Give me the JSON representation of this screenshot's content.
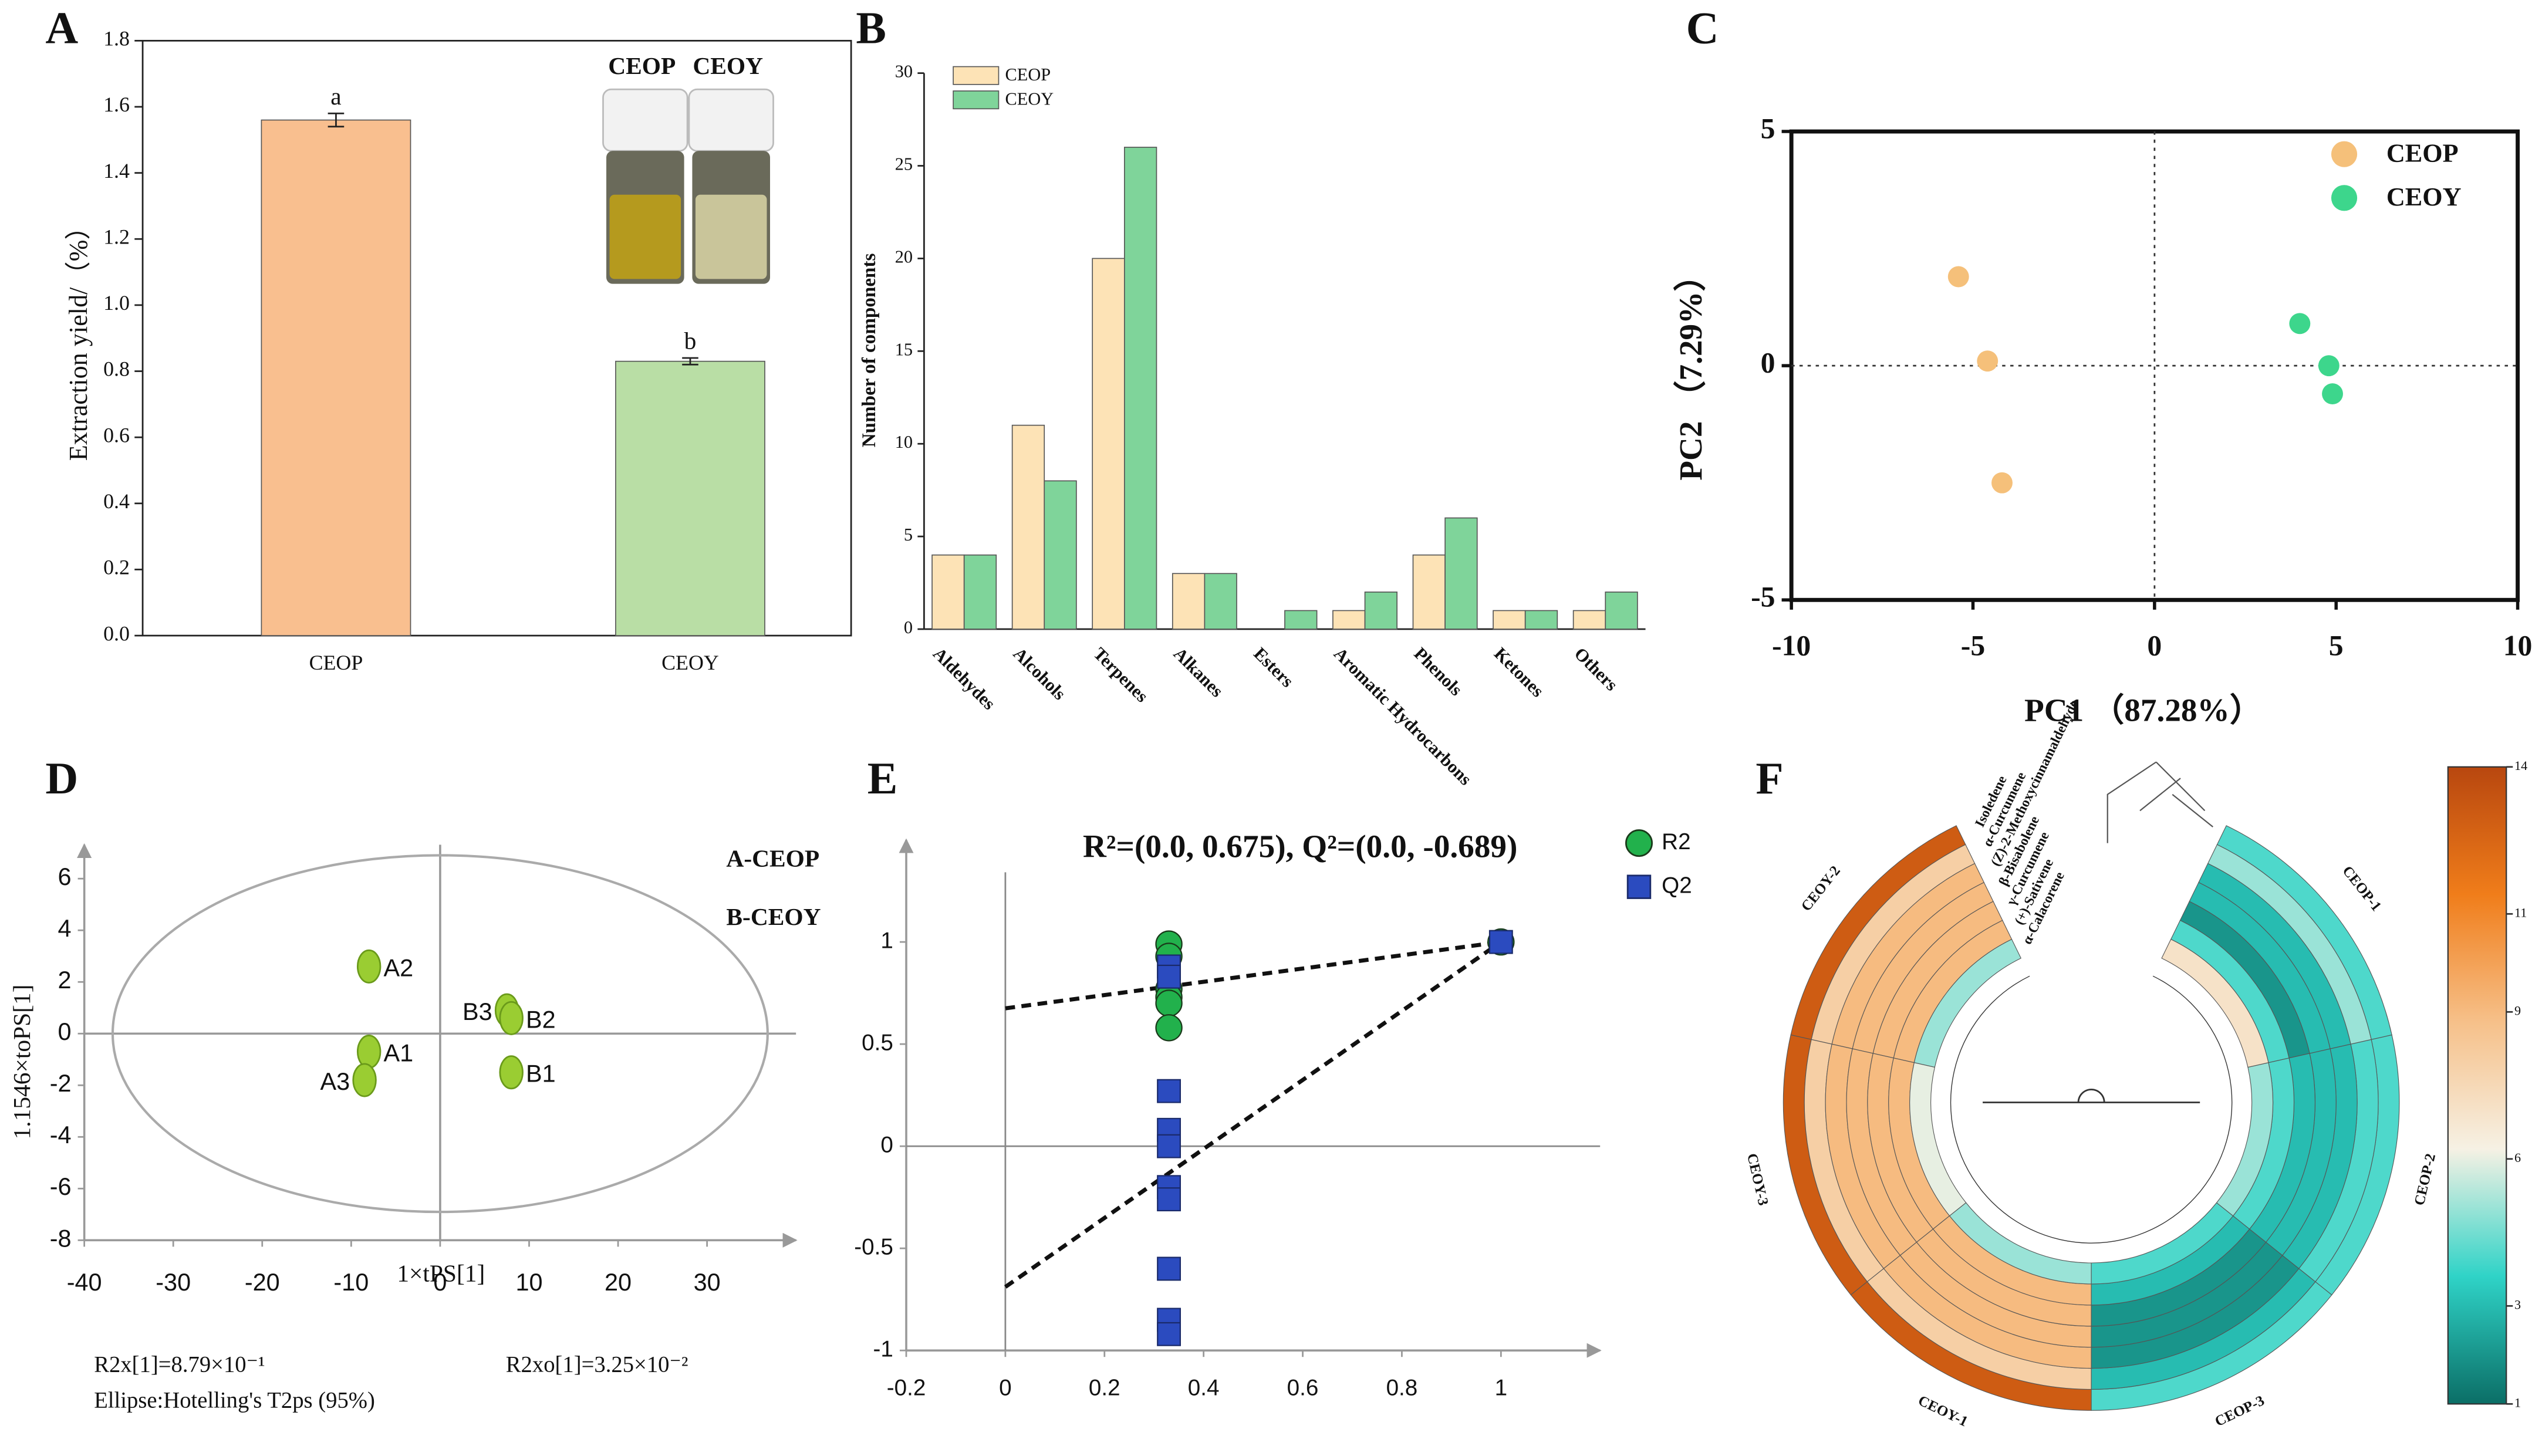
{
  "chart_data": [
    {
      "type": "bar",
      "panel": "A",
      "ylabel": "Extraction yield/（%）",
      "categories": [
        "CEOP",
        "CEOY"
      ],
      "values": [
        1.56,
        0.83
      ],
      "errors": [
        0.02,
        0.01
      ],
      "annotations": [
        "a",
        "b"
      ],
      "colors": [
        "#f9bf8f",
        "#b9dea5"
      ],
      "inset_labels": [
        "CEOP",
        "CEOY"
      ],
      "ylim": [
        0,
        1.8
      ],
      "yticks": [
        {
          "value": 0,
          "label": "0.0"
        },
        0.2,
        0.4,
        0.6,
        0.8,
        {
          "value": 1,
          "label": "1.0"
        },
        1.2,
        1.4,
        1.6,
        1.8
      ]
    },
    {
      "type": "grouped_bar",
      "panel": "B",
      "ylabel": "Number of components",
      "categories": [
        "Aldehydes",
        "Alcohols",
        "Terpenes",
        "Alkanes",
        "Esters",
        "Aromatic Hydrocarbons",
        "Phenols",
        "Ketones",
        "Others"
      ],
      "series": [
        {
          "name": "CEOP",
          "color": "#fde3b6",
          "values": [
            4,
            11,
            20,
            3,
            0,
            1,
            4,
            1,
            1
          ]
        },
        {
          "name": "CEOY",
          "color": "#7fd49a",
          "values": [
            4,
            8,
            26,
            3,
            1,
            2,
            6,
            1,
            2
          ]
        }
      ],
      "ylim": [
        0,
        30
      ],
      "yticks": [
        0,
        5,
        10,
        15,
        20,
        25,
        30
      ],
      "legend": "upper left"
    },
    {
      "type": "scatter",
      "panel": "C",
      "xlabel": "PC1 （87.28%）",
      "ylabel": "PC2 （7.29%）",
      "xlim": [
        -10,
        10
      ],
      "ylim": [
        -5,
        5
      ],
      "xticks": [
        -10,
        -5,
        0,
        5,
        10
      ],
      "yticks": [
        -5,
        0,
        5
      ],
      "legend": "upper right",
      "series": [
        {
          "name": "CEOP",
          "color": "#f5c07a",
          "x": [
            -5.4,
            -4.6,
            -4.2
          ],
          "values": [
            1.9,
            0.1,
            -2.5
          ]
        },
        {
          "name": "CEOY",
          "color": "#3dd68c",
          "x": [
            4,
            4.8,
            4.9
          ],
          "values": [
            0.9,
            0,
            -0.6
          ]
        }
      ]
    },
    {
      "type": "labeled_scatter",
      "panel": "D",
      "xlabel": "1×tPS[1]",
      "ylabel": "1.1546×toPS[1]",
      "xlim": [
        -40,
        40
      ],
      "ylim": [
        -8,
        7
      ],
      "xticks": [
        -40,
        -30,
        -20,
        -10,
        0,
        10,
        20,
        30
      ],
      "yticks": [
        -8,
        -6,
        -4,
        -2,
        0,
        2,
        4,
        6
      ],
      "color": "#9acd32",
      "labels": [
        "A2",
        "A1",
        "A3",
        "B3",
        "B2",
        "B1"
      ],
      "x": [
        -8,
        -8,
        -8.5,
        7.5,
        8,
        8
      ],
      "values": [
        2.6,
        -0.7,
        -1.8,
        0.9,
        0.6,
        -1.5
      ],
      "legend_texts": [
        "A-CEOP",
        "B-CEOY"
      ],
      "notes": [
        "R2x[1]=8.79×10⁻¹",
        "R2xo[1]=3.25×10⁻²",
        "Ellipse:Hotelling's T2ps (95%)"
      ]
    },
    {
      "type": "permutation",
      "panel": "E",
      "title": "R²=(0.0, 0.675), Q²=(0.0, -0.689)",
      "xlim": [
        -0.2,
        1.2
      ],
      "ylim": [
        -1,
        1.5
      ],
      "xticks": [
        -0.2,
        0,
        0.2,
        0.4,
        0.6,
        0.8,
        1
      ],
      "yticks": [
        -1,
        -0.5,
        0,
        0.5,
        1
      ],
      "series": [
        {
          "name": "R2",
          "color": "#22b14c",
          "marker": "circle",
          "x": [
            0.33,
            0.33,
            0.33,
            0.33,
            0.33,
            0.33,
            1
          ],
          "values": [
            0.99,
            0.93,
            0.77,
            0.73,
            0.7,
            0.58,
            1
          ]
        },
        {
          "name": "Q2",
          "color": "#2b4bbf",
          "marker": "square",
          "x": [
            0.33,
            0.33,
            0.33,
            0.33,
            0.33,
            0.33,
            0.33,
            0.33,
            0.33,
            0.33,
            1
          ],
          "values": [
            0.88,
            0.83,
            0.27,
            0.08,
            0.0,
            -0.2,
            -0.26,
            -0.6,
            -0.85,
            -0.92,
            1
          ]
        }
      ],
      "fit_lines": [
        {
          "x": [
            0,
            1
          ],
          "y": [
            0.675,
            1
          ]
        },
        {
          "x": [
            0,
            1
          ],
          "y": [
            -0.689,
            1
          ]
        }
      ]
    },
    {
      "type": "circular_heatmap",
      "panel": "F",
      "rows": [
        "Isoledene",
        "α-Curcumene",
        "(Z)-2-Methoxycinnamaldehyde",
        "β-Bisabolene",
        "γ-Curcumene",
        "(+)-Sativene",
        "α-Calacorene"
      ],
      "columns": [
        "CEOY-2",
        "CEOY-3",
        "CEOY-1",
        "CEOP-3",
        "CEOP-2",
        "CEOP-1"
      ],
      "values": [
        [
          13,
          13,
          13,
          4,
          4,
          4
        ],
        [
          8,
          8,
          8,
          3,
          4,
          5
        ],
        [
          9,
          9,
          9,
          2,
          3,
          3
        ],
        [
          9,
          9,
          9,
          2,
          3,
          3
        ],
        [
          9,
          9,
          9,
          2,
          3,
          2
        ],
        [
          9,
          9,
          9,
          3,
          4,
          4
        ],
        [
          5,
          6,
          5,
          4,
          5,
          7
        ]
      ],
      "clim": [
        1,
        14
      ],
      "colorbar_ticks": [
        1,
        3,
        6,
        9,
        11,
        14
      ],
      "colorscale": [
        "#0b6e66",
        "#2fd3c7",
        "#f6f1e4",
        "#f6c089",
        "#f07d1a",
        "#b8470f"
      ]
    }
  ]
}
